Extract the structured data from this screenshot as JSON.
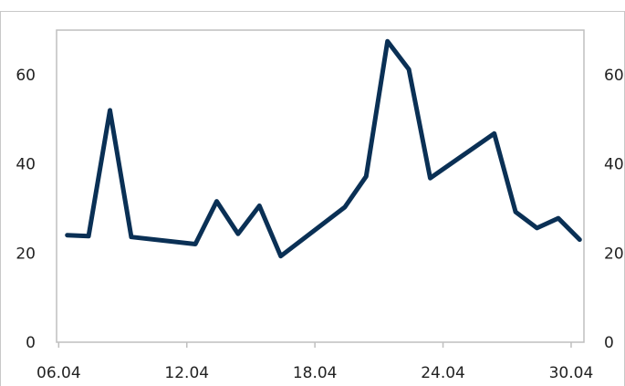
{
  "chart_data": {
    "type": "line",
    "title": "",
    "xlabel": "",
    "ylabel": "",
    "x_ticks": [
      "06.04",
      "12.04",
      "18.04",
      "24.04",
      "30.04"
    ],
    "x_tick_days": [
      6,
      12,
      18,
      24,
      30
    ],
    "xlim": [
      5.9,
      30.6
    ],
    "ylim": [
      0,
      70
    ],
    "y_ticks": [
      0,
      20,
      40,
      60
    ],
    "y_ticks_right": [
      0,
      20,
      40,
      60
    ],
    "grid": false,
    "legend": "none",
    "series": [
      {
        "color": "#0a3055",
        "x": [
          6.4,
          7.4,
          8.4,
          9.4,
          12.4,
          13.4,
          14.4,
          15.4,
          16.4,
          19.4,
          20.4,
          21.4,
          22.4,
          23.4,
          26.4,
          27.4,
          28.4,
          29.4,
          30.4
        ],
        "values": [
          24,
          23.8,
          52,
          23.6,
          22,
          31.6,
          24.3,
          30.6,
          19.3,
          30.3,
          37.2,
          67.5,
          61.2,
          36.8,
          46.8,
          29.2,
          25.6,
          27.8,
          23
        ]
      }
    ]
  }
}
